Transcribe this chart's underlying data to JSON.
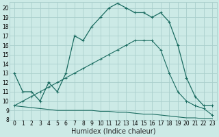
{
  "xlabel": "Humidex (Indice chaleur)",
  "bg_color": "#cceae6",
  "grid_color": "#aacfcc",
  "line_color": "#1a6b60",
  "xlim": [
    -0.5,
    23.5
  ],
  "ylim": [
    8,
    20.6
  ],
  "xticks": [
    0,
    1,
    2,
    3,
    4,
    5,
    6,
    7,
    8,
    9,
    10,
    11,
    12,
    13,
    14,
    15,
    16,
    17,
    18,
    19,
    20,
    21,
    22,
    23
  ],
  "yticks": [
    8,
    9,
    10,
    11,
    12,
    13,
    14,
    15,
    16,
    17,
    18,
    19,
    20
  ],
  "line1_x": [
    0,
    1,
    2,
    3,
    4,
    5,
    6,
    7,
    8,
    9,
    10,
    11,
    12,
    13,
    14,
    15,
    16,
    17,
    18,
    19,
    20,
    21,
    22,
    23
  ],
  "line1_y": [
    13.0,
    11.0,
    11.0,
    10.0,
    12.0,
    11.0,
    13.0,
    17.0,
    16.5,
    18.0,
    19.0,
    20.0,
    20.5,
    20.0,
    19.5,
    19.5,
    19.0,
    19.5,
    18.5,
    16.0,
    12.5,
    10.5,
    9.5,
    9.5
  ],
  "line2_x": [
    0,
    1,
    2,
    3,
    4,
    5,
    6,
    7,
    8,
    9,
    10,
    11,
    12,
    13,
    14,
    15,
    16,
    17,
    18,
    19,
    20,
    21,
    22,
    23
  ],
  "line2_y": [
    9.5,
    9.4,
    9.3,
    9.2,
    9.1,
    9.0,
    9.0,
    9.0,
    9.0,
    9.0,
    8.9,
    8.9,
    8.8,
    8.8,
    8.7,
    8.6,
    8.6,
    8.5,
    8.4,
    8.3,
    8.2,
    8.2,
    8.1,
    8.1
  ],
  "line3_x": [
    0,
    1,
    2,
    3,
    4,
    5,
    6,
    7,
    8,
    9,
    10,
    11,
    12,
    13,
    14,
    15,
    16,
    17,
    18,
    19,
    20,
    21,
    22,
    23
  ],
  "line3_y": [
    9.5,
    10.0,
    10.5,
    11.0,
    11.5,
    12.0,
    12.5,
    13.0,
    13.5,
    14.0,
    14.5,
    15.0,
    15.5,
    16.0,
    16.5,
    16.5,
    16.5,
    15.5,
    13.0,
    11.0,
    10.0,
    9.5,
    9.2,
    8.5
  ],
  "xlabel_fontsize": 7,
  "tick_fontsize": 5.5
}
